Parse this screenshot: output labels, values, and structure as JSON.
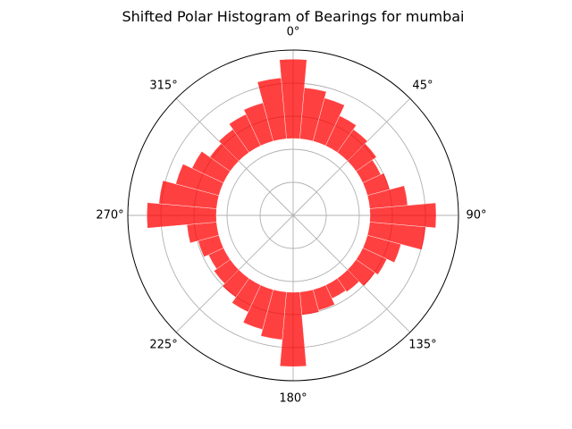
{
  "chart_data": {
    "type": "polar-bar",
    "title": "Shifted Polar Histogram of Bearings for mumbai",
    "theta_zero": "N",
    "theta_direction": "clockwise",
    "theta_ticks": [
      "0°",
      "45°",
      "90°",
      "135°",
      "180°",
      "225°",
      "270°",
      "315°"
    ],
    "bar_color": "#ff0000",
    "bar_alpha": 0.75,
    "grid": true,
    "radial_tick_labels": false,
    "bin_width_deg": 10,
    "bottom": 0.465,
    "rmax": 1.0,
    "bins": [
      {
        "center": 0,
        "value": 0.48
      },
      {
        "center": 10,
        "value": 0.31
      },
      {
        "center": 20,
        "value": 0.27
      },
      {
        "center": 30,
        "value": 0.2
      },
      {
        "center": 40,
        "value": 0.17
      },
      {
        "center": 50,
        "value": 0.15
      },
      {
        "center": 60,
        "value": 0.12
      },
      {
        "center": 70,
        "value": 0.14
      },
      {
        "center": 80,
        "value": 0.23
      },
      {
        "center": 90,
        "value": 0.4
      },
      {
        "center": 100,
        "value": 0.34
      },
      {
        "center": 110,
        "value": 0.21
      },
      {
        "center": 120,
        "value": 0.16
      },
      {
        "center": 130,
        "value": 0.14
      },
      {
        "center": 140,
        "value": 0.1
      },
      {
        "center": 150,
        "value": 0.09
      },
      {
        "center": 160,
        "value": 0.13
      },
      {
        "center": 170,
        "value": 0.14
      },
      {
        "center": 180,
        "value": 0.45
      },
      {
        "center": 190,
        "value": 0.29
      },
      {
        "center": 200,
        "value": 0.25
      },
      {
        "center": 210,
        "value": 0.18
      },
      {
        "center": 220,
        "value": 0.14
      },
      {
        "center": 230,
        "value": 0.12
      },
      {
        "center": 240,
        "value": 0.1
      },
      {
        "center": 250,
        "value": 0.13
      },
      {
        "center": 260,
        "value": 0.18
      },
      {
        "center": 270,
        "value": 0.42
      },
      {
        "center": 280,
        "value": 0.35
      },
      {
        "center": 290,
        "value": 0.27
      },
      {
        "center": 300,
        "value": 0.21
      },
      {
        "center": 310,
        "value": 0.15
      },
      {
        "center": 320,
        "value": 0.17
      },
      {
        "center": 330,
        "value": 0.21
      },
      {
        "center": 340,
        "value": 0.24
      },
      {
        "center": 350,
        "value": 0.37
      }
    ]
  }
}
